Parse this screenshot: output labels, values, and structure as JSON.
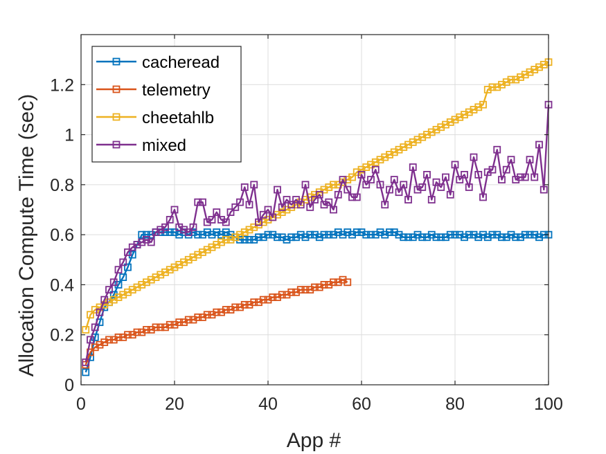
{
  "chart_data": {
    "type": "line",
    "title": "",
    "xlabel": "App #",
    "ylabel": "Allocation Compute Time (sec)",
    "xlim": [
      0,
      100
    ],
    "ylim": [
      0,
      1.4
    ],
    "xticks": [
      0,
      20,
      40,
      60,
      80,
      100
    ],
    "yticks": [
      0,
      0.2,
      0.4,
      0.6,
      0.8,
      1,
      1.2
    ],
    "ytick_labels": [
      "0",
      "0.2",
      "0.4",
      "0.6",
      "0.8",
      "1",
      "1.2"
    ],
    "grid": true,
    "legend_position": "top-left",
    "marker": "square",
    "series": [
      {
        "name": "cacheread",
        "color": "#0072BD",
        "x": [
          1,
          2,
          3,
          4,
          5,
          6,
          7,
          8,
          9,
          10,
          11,
          12,
          13,
          14,
          15,
          16,
          17,
          18,
          19,
          20,
          21,
          22,
          23,
          24,
          25,
          26,
          27,
          28,
          29,
          30,
          31,
          32,
          33,
          34,
          35,
          36,
          37,
          38,
          39,
          40,
          41,
          42,
          43,
          44,
          45,
          46,
          47,
          48,
          49,
          50,
          51,
          52,
          53,
          54,
          55,
          56,
          57,
          58,
          59,
          60,
          61,
          62,
          63,
          64,
          65,
          66,
          67,
          68,
          69,
          70,
          71,
          72,
          73,
          74,
          75,
          76,
          77,
          78,
          79,
          80,
          81,
          82,
          83,
          84,
          85,
          86,
          87,
          88,
          89,
          90,
          91,
          92,
          93,
          94,
          95,
          96,
          97,
          98,
          99,
          100
        ],
        "y": [
          0.05,
          0.11,
          0.19,
          0.25,
          0.31,
          0.33,
          0.36,
          0.4,
          0.43,
          0.47,
          0.52,
          0.56,
          0.6,
          0.6,
          0.6,
          0.61,
          0.61,
          0.61,
          0.61,
          0.61,
          0.6,
          0.61,
          0.6,
          0.61,
          0.6,
          0.6,
          0.61,
          0.6,
          0.61,
          0.6,
          0.61,
          0.6,
          0.59,
          0.58,
          0.58,
          0.58,
          0.58,
          0.59,
          0.59,
          0.6,
          0.6,
          0.59,
          0.59,
          0.58,
          0.59,
          0.59,
          0.6,
          0.59,
          0.6,
          0.6,
          0.59,
          0.6,
          0.6,
          0.6,
          0.61,
          0.6,
          0.61,
          0.6,
          0.61,
          0.61,
          0.6,
          0.6,
          0.6,
          0.61,
          0.6,
          0.61,
          0.61,
          0.6,
          0.59,
          0.59,
          0.59,
          0.6,
          0.59,
          0.59,
          0.6,
          0.59,
          0.59,
          0.59,
          0.6,
          0.6,
          0.6,
          0.59,
          0.6,
          0.6,
          0.59,
          0.6,
          0.59,
          0.6,
          0.6,
          0.59,
          0.59,
          0.6,
          0.59,
          0.59,
          0.6,
          0.6,
          0.6,
          0.59,
          0.6,
          0.6
        ]
      },
      {
        "name": "telemetry",
        "color": "#D95319",
        "x": [
          1,
          2,
          3,
          4,
          5,
          6,
          7,
          8,
          9,
          10,
          11,
          12,
          13,
          14,
          15,
          16,
          17,
          18,
          19,
          20,
          21,
          22,
          23,
          24,
          25,
          26,
          27,
          28,
          29,
          30,
          31,
          32,
          33,
          34,
          35,
          36,
          37,
          38,
          39,
          40,
          41,
          42,
          43,
          44,
          45,
          46,
          47,
          48,
          49,
          50,
          51,
          52,
          53,
          54,
          55,
          56,
          57
        ],
        "y": [
          0.08,
          0.13,
          0.15,
          0.16,
          0.17,
          0.18,
          0.18,
          0.19,
          0.19,
          0.2,
          0.2,
          0.21,
          0.21,
          0.22,
          0.22,
          0.23,
          0.23,
          0.23,
          0.24,
          0.24,
          0.25,
          0.25,
          0.26,
          0.26,
          0.27,
          0.27,
          0.28,
          0.28,
          0.29,
          0.29,
          0.3,
          0.3,
          0.31,
          0.31,
          0.32,
          0.32,
          0.33,
          0.33,
          0.34,
          0.34,
          0.35,
          0.35,
          0.36,
          0.36,
          0.37,
          0.37,
          0.38,
          0.38,
          0.38,
          0.39,
          0.39,
          0.4,
          0.4,
          0.41,
          0.41,
          0.42,
          0.41
        ]
      },
      {
        "name": "cheetahlb",
        "color": "#EDB120",
        "x": [
          1,
          2,
          3,
          4,
          5,
          6,
          7,
          8,
          9,
          10,
          11,
          12,
          13,
          14,
          15,
          16,
          17,
          18,
          19,
          20,
          21,
          22,
          23,
          24,
          25,
          26,
          27,
          28,
          29,
          30,
          31,
          32,
          33,
          34,
          35,
          36,
          37,
          38,
          39,
          40,
          41,
          42,
          43,
          44,
          45,
          46,
          47,
          48,
          49,
          50,
          51,
          52,
          53,
          54,
          55,
          56,
          57,
          58,
          59,
          60,
          61,
          62,
          63,
          64,
          65,
          66,
          67,
          68,
          69,
          70,
          71,
          72,
          73,
          74,
          75,
          76,
          77,
          78,
          79,
          80,
          81,
          82,
          83,
          84,
          85,
          86,
          87,
          88,
          89,
          90,
          91,
          92,
          93,
          94,
          95,
          96,
          97,
          98,
          99,
          100
        ],
        "y": [
          0.22,
          0.28,
          0.3,
          0.31,
          0.32,
          0.33,
          0.34,
          0.35,
          0.36,
          0.37,
          0.38,
          0.39,
          0.4,
          0.41,
          0.42,
          0.43,
          0.44,
          0.45,
          0.46,
          0.47,
          0.48,
          0.49,
          0.5,
          0.51,
          0.52,
          0.53,
          0.54,
          0.55,
          0.56,
          0.57,
          0.58,
          0.58,
          0.59,
          0.6,
          0.61,
          0.62,
          0.63,
          0.64,
          0.65,
          0.66,
          0.67,
          0.68,
          0.69,
          0.7,
          0.71,
          0.72,
          0.73,
          0.74,
          0.75,
          0.76,
          0.77,
          0.78,
          0.79,
          0.8,
          0.8,
          0.81,
          0.82,
          0.83,
          0.85,
          0.86,
          0.87,
          0.88,
          0.89,
          0.9,
          0.91,
          0.92,
          0.93,
          0.94,
          0.95,
          0.96,
          0.97,
          0.98,
          0.99,
          1.0,
          1.01,
          1.02,
          1.03,
          1.04,
          1.05,
          1.06,
          1.07,
          1.08,
          1.09,
          1.1,
          1.11,
          1.12,
          1.18,
          1.19,
          1.19,
          1.2,
          1.21,
          1.22,
          1.22,
          1.23,
          1.24,
          1.25,
          1.26,
          1.27,
          1.28,
          1.29
        ]
      },
      {
        "name": "mixed",
        "color": "#7E2F8E",
        "x": [
          1,
          2,
          3,
          4,
          5,
          6,
          7,
          8,
          9,
          10,
          11,
          12,
          13,
          14,
          15,
          16,
          17,
          18,
          19,
          20,
          21,
          22,
          23,
          24,
          25,
          26,
          27,
          28,
          29,
          30,
          31,
          32,
          33,
          34,
          35,
          36,
          37,
          38,
          39,
          40,
          41,
          42,
          43,
          44,
          45,
          46,
          47,
          48,
          49,
          50,
          51,
          52,
          53,
          54,
          55,
          56,
          57,
          58,
          59,
          60,
          61,
          62,
          63,
          64,
          65,
          66,
          67,
          68,
          69,
          70,
          71,
          72,
          73,
          74,
          75,
          76,
          77,
          78,
          79,
          80,
          81,
          82,
          83,
          84,
          85,
          86,
          87,
          88,
          89,
          90,
          91,
          92,
          93,
          94,
          95,
          96,
          97,
          98,
          99,
          100
        ],
        "y": [
          0.09,
          0.18,
          0.23,
          0.29,
          0.34,
          0.38,
          0.41,
          0.46,
          0.49,
          0.53,
          0.55,
          0.56,
          0.57,
          0.58,
          0.57,
          0.61,
          0.62,
          0.63,
          0.66,
          0.7,
          0.63,
          0.62,
          0.61,
          0.63,
          0.73,
          0.73,
          0.65,
          0.66,
          0.69,
          0.66,
          0.65,
          0.69,
          0.71,
          0.73,
          0.79,
          0.72,
          0.8,
          0.65,
          0.68,
          0.7,
          0.67,
          0.78,
          0.71,
          0.74,
          0.72,
          0.74,
          0.72,
          0.8,
          0.71,
          0.74,
          0.76,
          0.72,
          0.73,
          0.7,
          0.76,
          0.82,
          0.78,
          0.75,
          0.75,
          0.84,
          0.8,
          0.82,
          0.86,
          0.8,
          0.72,
          0.78,
          0.82,
          0.77,
          0.8,
          0.74,
          0.87,
          0.78,
          0.79,
          0.84,
          0.74,
          0.81,
          0.79,
          0.83,
          0.76,
          0.88,
          0.82,
          0.84,
          0.79,
          0.91,
          0.84,
          0.75,
          0.85,
          0.86,
          0.94,
          0.82,
          0.86,
          0.9,
          0.82,
          0.83,
          0.83,
          0.9,
          0.83,
          0.96,
          0.78,
          1.12
        ]
      }
    ]
  }
}
